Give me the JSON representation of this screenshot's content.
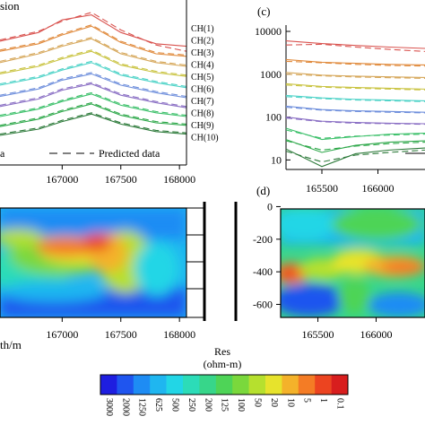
{
  "chart_data": [
    {
      "id": "a",
      "type": "line",
      "title": "sion",
      "xlim": [
        166470,
        168060
      ],
      "xticks": [
        167000,
        167500,
        168000
      ],
      "x": [
        166470,
        166800,
        167000,
        167250,
        167500,
        167800,
        168060
      ],
      "series": [
        {
          "name": "CH(1)",
          "color": "#d9534f",
          "measured": [
            8.0,
            8.7,
            9.7,
            10.1,
            8.7,
            7.8,
            7.6
          ],
          "predicted": [
            8.1,
            8.8,
            9.6,
            10.3,
            8.9,
            7.7,
            7.2
          ]
        },
        {
          "name": "CH(2)",
          "color": "#e08a3c",
          "measured": [
            7.2,
            7.8,
            8.5,
            9.2,
            7.9,
            7.0,
            6.8
          ],
          "predicted": [
            7.3,
            7.9,
            8.6,
            9.3,
            8.0,
            7.1,
            6.9
          ]
        },
        {
          "name": "CH(3)",
          "color": "#d6a75a",
          "measured": [
            6.3,
            7.0,
            7.6,
            8.2,
            7.0,
            6.3,
            6.0
          ],
          "predicted": [
            6.4,
            7.1,
            7.7,
            8.3,
            7.1,
            6.4,
            6.1
          ]
        },
        {
          "name": "CH(4)",
          "color": "#c9c340",
          "measured": [
            5.4,
            6.0,
            6.6,
            7.2,
            6.1,
            5.5,
            5.2
          ],
          "predicted": [
            5.5,
            6.1,
            6.7,
            7.3,
            6.2,
            5.6,
            5.3
          ]
        },
        {
          "name": "CH(5)",
          "color": "#4fd3c8",
          "measured": [
            4.5,
            5.1,
            5.7,
            6.3,
            5.3,
            4.7,
            4.3
          ],
          "predicted": [
            4.6,
            5.2,
            5.8,
            6.4,
            5.4,
            4.8,
            4.4
          ]
        },
        {
          "name": "CH(6)",
          "color": "#6f8fdc",
          "measured": [
            3.6,
            4.2,
            4.9,
            5.4,
            4.5,
            3.9,
            3.5
          ],
          "predicted": [
            3.7,
            4.3,
            5.0,
            5.5,
            4.6,
            4.0,
            3.6
          ]
        },
        {
          "name": "CH(7)",
          "color": "#8a6fc4",
          "measured": [
            2.8,
            3.4,
            4.1,
            4.6,
            3.7,
            3.1,
            2.7
          ],
          "predicted": [
            2.9,
            3.5,
            4.2,
            4.7,
            3.8,
            3.2,
            2.8
          ]
        },
        {
          "name": "CH(8)",
          "color": "#3cc06a",
          "measured": [
            2.0,
            2.6,
            3.2,
            3.8,
            2.9,
            2.3,
            2.0
          ],
          "predicted": [
            2.1,
            2.7,
            3.3,
            3.9,
            3.0,
            2.4,
            2.1
          ]
        },
        {
          "name": "CH(9)",
          "color": "#2ea84a",
          "measured": [
            1.2,
            1.8,
            2.4,
            3.0,
            2.1,
            1.5,
            1.3
          ],
          "predicted": [
            1.3,
            1.9,
            2.5,
            3.1,
            2.2,
            1.6,
            1.4
          ]
        },
        {
          "name": "CH(10)",
          "color": "#2d7a3a",
          "measured": [
            0.5,
            1.0,
            1.6,
            2.2,
            1.4,
            0.8,
            0.6
          ],
          "predicted": [
            0.6,
            1.1,
            1.7,
            2.3,
            1.5,
            0.9,
            0.7
          ]
        }
      ],
      "legend": {
        "measured_suffix": "a",
        "predicted_label": "Predicted data"
      }
    },
    {
      "id": "c",
      "type": "line",
      "panel_label": "(c)",
      "yscale": "log",
      "ylim": [
        6,
        14000
      ],
      "yticks": [
        10,
        100,
        1000,
        10000
      ],
      "ytick_labels": [
        "10",
        "100",
        "1000",
        "10000"
      ],
      "xlim": [
        165180,
        166420
      ],
      "xticks": [
        165500,
        166000
      ],
      "x": [
        165180,
        165500,
        165800,
        166100,
        166420
      ],
      "series": [
        {
          "color": "#d9534f",
          "measured": [
            6000,
            5200,
            4700,
            4300,
            4000
          ],
          "predicted": [
            4800,
            5000,
            4300,
            3800,
            3400
          ]
        },
        {
          "color": "#e08a3c",
          "measured": [
            2200,
            1900,
            1800,
            1700,
            1650
          ],
          "predicted": [
            2000,
            1850,
            1700,
            1600,
            1550
          ]
        },
        {
          "color": "#d6a75a",
          "measured": [
            1100,
            950,
            900,
            870,
            840
          ],
          "predicted": [
            1000,
            920,
            860,
            830,
            800
          ]
        },
        {
          "color": "#c9c340",
          "measured": [
            600,
            520,
            490,
            470,
            450
          ],
          "predicted": [
            560,
            500,
            470,
            450,
            430
          ]
        },
        {
          "color": "#4fd3c8",
          "measured": [
            320,
            280,
            260,
            250,
            240
          ],
          "predicted": [
            300,
            270,
            250,
            240,
            230
          ]
        },
        {
          "color": "#6f8fdc",
          "measured": [
            180,
            150,
            140,
            135,
            130
          ],
          "predicted": [
            170,
            145,
            135,
            130,
            125
          ]
        },
        {
          "color": "#8a6fc4",
          "measured": [
            100,
            80,
            75,
            72,
            70
          ],
          "predicted": [
            95,
            78,
            72,
            70,
            68
          ]
        },
        {
          "color": "#3cc06a",
          "measured": [
            55,
            30,
            35,
            40,
            42
          ],
          "predicted": [
            50,
            32,
            36,
            38,
            40
          ]
        },
        {
          "color": "#2ea84a",
          "measured": [
            30,
            15,
            22,
            26,
            28
          ],
          "predicted": [
            28,
            17,
            21,
            24,
            26
          ]
        },
        {
          "color": "#2d7a3a",
          "measured": [
            18,
            7,
            14,
            17,
            19
          ],
          "predicted": [
            16,
            9,
            13,
            15,
            17
          ]
        }
      ]
    },
    {
      "id": "b",
      "type": "heatmap",
      "xlabel_partial": "th/m",
      "xlim": [
        166470,
        168060
      ],
      "xticks": [
        167000,
        167500,
        168000
      ]
    },
    {
      "id": "d",
      "type": "heatmap",
      "panel_label": "(d)",
      "ylim": [
        -680,
        30
      ],
      "yticks": [
        0,
        -200,
        -400,
        -600
      ],
      "xlim": [
        165180,
        166420
      ],
      "xticks": [
        165500,
        166000
      ]
    }
  ],
  "colorbar": {
    "title": "Res",
    "unit": "(ohm-m)",
    "labels": [
      "3000",
      "2000",
      "1250",
      "625",
      "500",
      "250",
      "200",
      "125",
      "100",
      "50",
      "20",
      "10",
      "5",
      "1",
      "0.1"
    ],
    "colors": [
      "#1e1ee0",
      "#1f55ef",
      "#1e8cf4",
      "#1fb6f0",
      "#22d6e6",
      "#2cdcb8",
      "#37d68a",
      "#4ed457",
      "#7ad83c",
      "#b6e02e",
      "#e7e32c",
      "#f4b22a",
      "#f47c25",
      "#ec4420",
      "#d81e1e"
    ]
  }
}
